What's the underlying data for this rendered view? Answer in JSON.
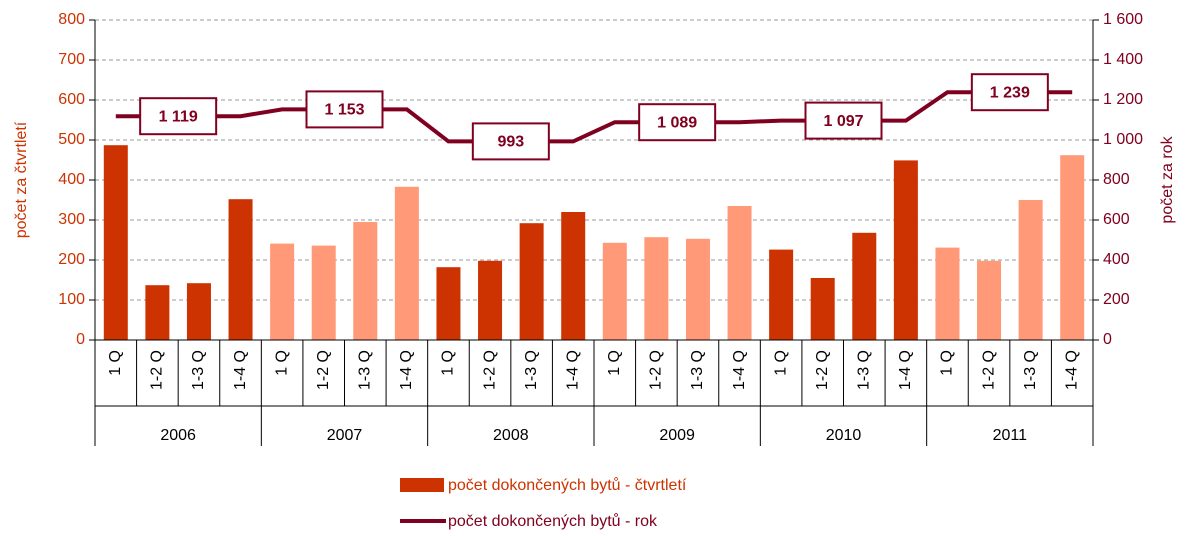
{
  "chart_data": {
    "type": "bar_line",
    "y_label": "počet za čtvrtletí",
    "y2_label": "počet za rok",
    "categories": [
      "1 Q",
      "1-2 Q",
      "1-3 Q",
      "1-4 Q",
      "1 Q",
      "1-2 Q",
      "1-3 Q",
      "1-4 Q",
      "1 Q",
      "1-2 Q",
      "1-3 Q",
      "1-4 Q",
      "1 Q",
      "1-2 Q",
      "1-3 Q",
      "1-4 Q",
      "1 Q",
      "1-2 Q",
      "1-3 Q",
      "1-4 Q",
      "1 Q",
      "1-2 Q",
      "1-3 Q",
      "1-4 Q"
    ],
    "groups": [
      "2006",
      "2007",
      "2008",
      "2009",
      "2010",
      "2011"
    ],
    "group_size": 4,
    "series": [
      {
        "name": "počet dokončených bytů - čtvrtletí",
        "type": "bar",
        "color": "#cc3300",
        "colors": [
          "#cc3300",
          "#ff9977",
          "#cc3300",
          "#ff9977",
          "#cc3300",
          "#ff9977"
        ],
        "values": [
          487,
          137,
          142,
          352,
          241,
          236,
          295,
          383,
          182,
          198,
          292,
          320,
          243,
          257,
          253,
          335,
          226,
          155,
          268,
          449,
          231,
          198,
          350,
          462
        ]
      },
      {
        "name": "počet dokončených bytů - rok",
        "type": "line",
        "axis": "y2",
        "color": "#800020",
        "values": [
          1119,
          1119,
          1119,
          1119,
          1153,
          1153,
          1153,
          1153,
          993,
          993,
          993,
          993,
          1089,
          1089,
          1089,
          1089,
          1097,
          1097,
          1097,
          1097,
          1239,
          1239,
          1239,
          1239
        ],
        "totals": [
          1119,
          1153,
          993,
          1089,
          1097,
          1239
        ],
        "totals_labels": [
          "1 119",
          "1 153",
          "993",
          "1 089",
          "1 097",
          "1 239"
        ]
      }
    ],
    "ylim": [
      0,
      800
    ],
    "yticks": [
      0,
      100,
      200,
      300,
      400,
      500,
      600,
      700,
      800
    ],
    "y2lim": [
      0,
      1600
    ],
    "y2ticks": [
      0,
      200,
      400,
      600,
      800,
      {
        "value": 1000,
        "label": "1 000"
      },
      {
        "value": 1200,
        "label": "1 200"
      },
      {
        "value": 1400,
        "label": "1 400"
      },
      {
        "value": 1600,
        "label": "1 600"
      }
    ],
    "grid": true,
    "legend": "bottom"
  }
}
